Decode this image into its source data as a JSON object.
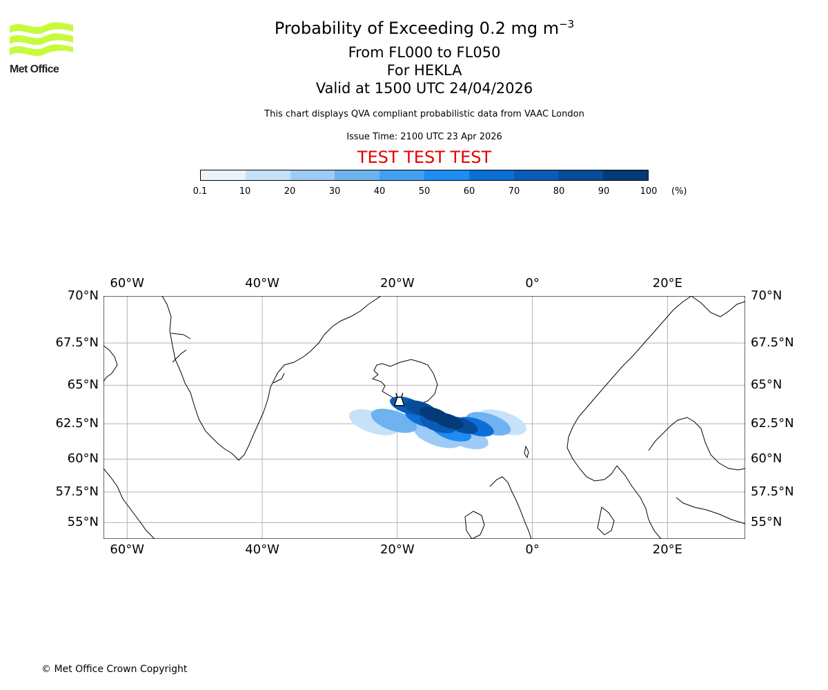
{
  "header": {
    "title_prefix": "Probability of Exceeding 0.2 mg m",
    "title_exponent": "−3",
    "flight_levels": "From FL000 to FL050",
    "volcano": "For HEKLA",
    "valid_time": "Valid at 1500 UTC 24/04/2026",
    "info": "This chart displays QVA compliant probabilistic data from VAAC London",
    "issue_time": "Issue Time: 2100 UTC 23 Apr 2026",
    "test_banner": "TEST TEST TEST",
    "test_color": "#e00000"
  },
  "logo": {
    "text": "Met Office",
    "wave_color": "#c8fa3c",
    "icon": "met-office-waves-logo"
  },
  "colorbar": {
    "ticks": [
      "0.1",
      "10",
      "20",
      "30",
      "40",
      "50",
      "60",
      "70",
      "80",
      "90",
      "100"
    ],
    "unit": "(%)",
    "colors": [
      "#eaf4fd",
      "#c6e2f9",
      "#9dcbf5",
      "#6fb2f0",
      "#42a0f0",
      "#1e8cf0",
      "#0d6fd6",
      "#0a5cb8",
      "#064c98",
      "#033a78",
      "#012857"
    ]
  },
  "map": {
    "lon_range": [
      -63.5,
      31.5
    ],
    "lat_range": [
      53.6,
      70
    ],
    "lon_ticks": [
      {
        "value": -60,
        "label": "60°W"
      },
      {
        "value": -40,
        "label": "40°W"
      },
      {
        "value": -20,
        "label": "20°W"
      },
      {
        "value": 0,
        "label": "0°"
      },
      {
        "value": 20,
        "label": "20°E"
      }
    ],
    "lat_ticks": [
      {
        "value": 70,
        "label": "70°N"
      },
      {
        "value": 67.5,
        "label": "67.5°N"
      },
      {
        "value": 65,
        "label": "65°N"
      },
      {
        "value": 62.5,
        "label": "62.5°N"
      },
      {
        "value": 60,
        "label": "60°N"
      },
      {
        "value": 57.5,
        "label": "57.5°N"
      },
      {
        "value": 55,
        "label": "55°N"
      }
    ],
    "gridlines": true,
    "volcano": {
      "lon": -19.7,
      "lat": 63.98,
      "icon": "volcano-icon"
    },
    "plume": {
      "cells": [
        {
          "lon": -14.5,
          "lat": 63.1,
          "p": 95
        },
        {
          "lon": -12.5,
          "lat": 62.7,
          "p": 92
        },
        {
          "lon": -16.5,
          "lat": 63.5,
          "p": 88
        },
        {
          "lon": -10.5,
          "lat": 62.4,
          "p": 85
        },
        {
          "lon": -18.5,
          "lat": 63.7,
          "p": 75
        },
        {
          "lon": -8.5,
          "lat": 62.3,
          "p": 65
        },
        {
          "lon": -14.0,
          "lat": 62.5,
          "p": 70
        },
        {
          "lon": -12.0,
          "lat": 62.0,
          "p": 55
        },
        {
          "lon": -16.0,
          "lat": 62.9,
          "p": 60
        },
        {
          "lon": -6.5,
          "lat": 62.5,
          "p": 35
        },
        {
          "lon": -4.5,
          "lat": 62.6,
          "p": 18
        },
        {
          "lon": -20.5,
          "lat": 62.7,
          "p": 30
        },
        {
          "lon": -23.5,
          "lat": 62.6,
          "p": 15
        },
        {
          "lon": -10.0,
          "lat": 61.6,
          "p": 25
        },
        {
          "lon": -14.0,
          "lat": 61.7,
          "p": 20
        }
      ]
    }
  },
  "footer": {
    "copyright": "© Met Office Crown Copyright"
  }
}
